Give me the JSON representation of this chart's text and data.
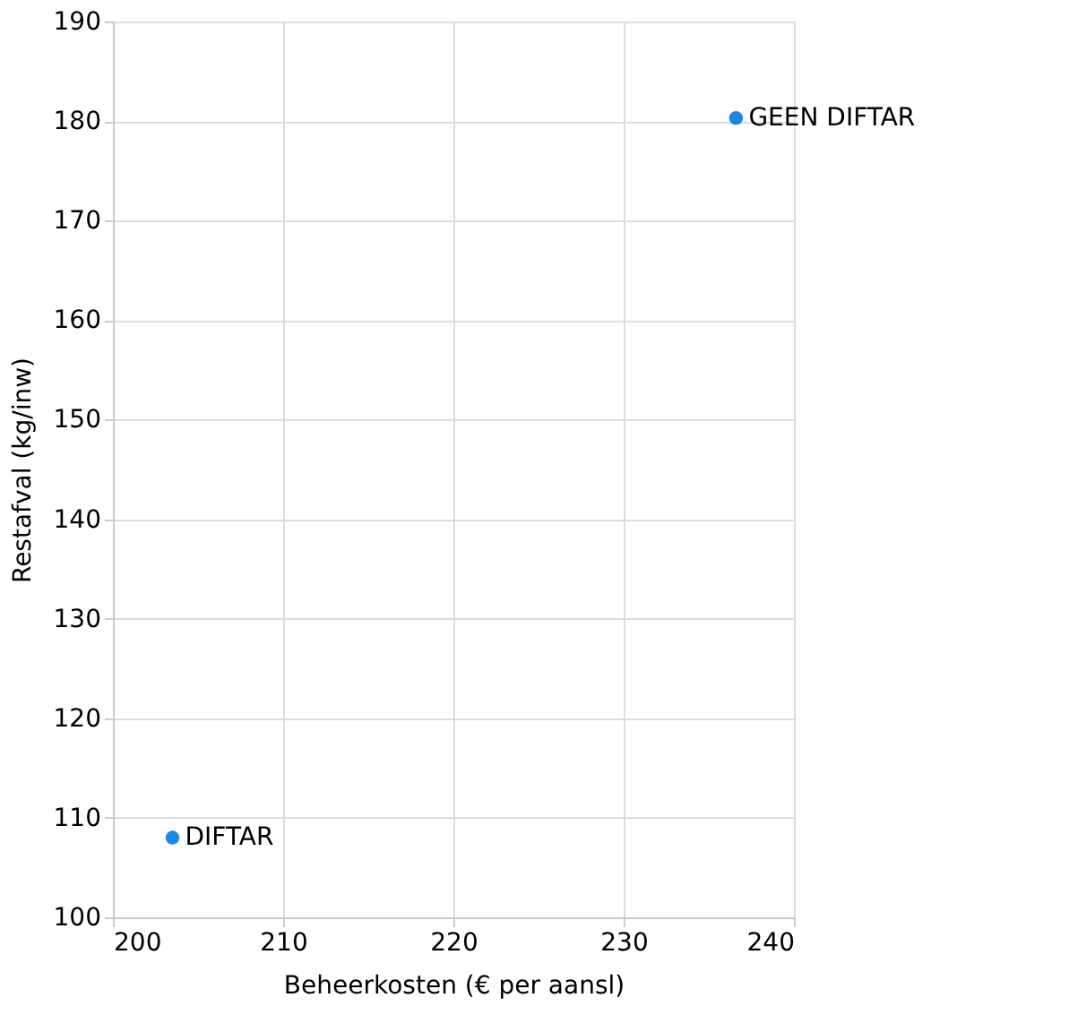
{
  "chart_data": {
    "type": "scatter",
    "xlabel": "Beheerkosten (€ per aansl)",
    "ylabel": "Restafval (kg/inw)",
    "series": [
      {
        "name": "DIFTAR",
        "color": "#1e88e5",
        "x": [
          203.5
        ],
        "values": [
          108.0
        ]
      },
      {
        "name": "GEEN DIFTAR",
        "color": "#1e88e5",
        "x": [
          236.6
        ],
        "values": [
          180.3
        ]
      }
    ],
    "xlim": [
      200,
      240
    ],
    "xticks": [
      200,
      210,
      220,
      230,
      240
    ],
    "ylim": [
      100,
      190
    ],
    "yticks": [
      100,
      110,
      120,
      130,
      140,
      150,
      160,
      170,
      180,
      190
    ],
    "grid": true,
    "marker": "circle"
  }
}
